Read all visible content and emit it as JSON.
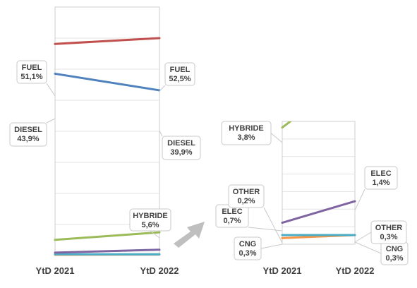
{
  "chart_data": [
    {
      "type": "line",
      "categories": [
        "YtD 2021",
        "YtD 2022"
      ],
      "ylim": [
        0,
        60
      ],
      "grid": true,
      "series": [
        {
          "name": "FUEL",
          "values": [
            51.1,
            52.5
          ],
          "color": "#c0504d",
          "labels": [
            "FUEL\n51,1%",
            "FUEL\n52,5%"
          ]
        },
        {
          "name": "DIESEL",
          "values": [
            43.9,
            39.9
          ],
          "color": "#4f81bd",
          "labels": [
            "DIESEL\n43,9%",
            "DIESEL\n39,9%"
          ]
        },
        {
          "name": "HYBRIDE",
          "values": [
            3.8,
            5.6
          ],
          "color": "#9bbb59",
          "labels": [
            "",
            "HYBRIDE\n5,6%"
          ]
        },
        {
          "name": "ELEC",
          "values": [
            0.7,
            1.4
          ],
          "color": "#8064a2",
          "labels": [
            "",
            ""
          ]
        },
        {
          "name": "CNG",
          "values": [
            0.3,
            0.3
          ],
          "color": "#4bacc6",
          "labels": [
            "",
            ""
          ]
        },
        {
          "name": "OTHER",
          "values": [
            0.2,
            0.3
          ],
          "color": "#f79646",
          "labels": [
            "",
            ""
          ]
        }
      ]
    },
    {
      "type": "line",
      "categories": [
        "YtD 2021",
        "YtD 2022"
      ],
      "ylim": [
        0,
        4
      ],
      "grid": true,
      "series": [
        {
          "name": "HYBRIDE",
          "values": [
            3.8,
            5.6
          ],
          "color": "#9bbb59",
          "labels": [
            "HYBRIDE\n3,8%",
            ""
          ]
        },
        {
          "name": "ELEC",
          "values": [
            0.7,
            1.4
          ],
          "color": "#8064a2",
          "labels": [
            "ELEC\n0,7%",
            "ELEC\n1,4%"
          ]
        },
        {
          "name": "CNG",
          "values": [
            0.3,
            0.3
          ],
          "color": "#4bacc6",
          "labels": [
            "CNG\n0,3%",
            "CNG\n0,3%"
          ]
        },
        {
          "name": "OTHER",
          "values": [
            0.2,
            0.3
          ],
          "color": "#f79646",
          "labels": [
            "OTHER\n0,2%",
            "OTHER\n0,3%"
          ]
        }
      ]
    }
  ],
  "arrow_color": "#bfbfbf"
}
